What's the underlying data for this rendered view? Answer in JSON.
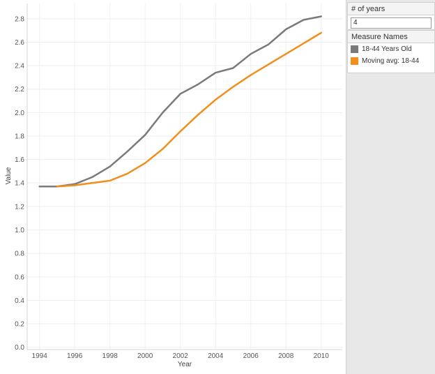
{
  "parameter": {
    "title": "# of years",
    "value": "4"
  },
  "legend": {
    "title": "Measure Names",
    "items": [
      {
        "label": "18-44 Years Old",
        "color": "#7a7a7a"
      },
      {
        "label": "Moving avg: 18-44",
        "color": "#f28e1c"
      }
    ]
  },
  "chart_data": {
    "type": "line",
    "xlabel": "Year",
    "ylabel": "Value",
    "xlim": [
      1993.3,
      2011.2
    ],
    "ylim": [
      -0.02,
      2.93
    ],
    "x_ticks": [
      1994,
      1996,
      1998,
      2000,
      2002,
      2004,
      2006,
      2008,
      2010
    ],
    "y_ticks": [
      "0.0",
      "0.2",
      "0.4",
      "0.6",
      "0.8",
      "1.0",
      "1.2",
      "1.4",
      "1.6",
      "1.8",
      "2.0",
      "2.2",
      "2.4",
      "2.6",
      "2.8"
    ],
    "grid": true,
    "legend_position": "right",
    "series": [
      {
        "name": "18-44 Years Old",
        "color": "#7a7a7a",
        "points": [
          [
            1994,
            1.37
          ],
          [
            1995,
            1.37
          ],
          [
            1996,
            1.39
          ],
          [
            1997,
            1.45
          ],
          [
            1998,
            1.54
          ],
          [
            1999,
            1.67
          ],
          [
            2000,
            1.81
          ],
          [
            2001,
            2.0
          ],
          [
            2002,
            2.16
          ],
          [
            2003,
            2.24
          ],
          [
            2004,
            2.34
          ],
          [
            2005,
            2.38
          ],
          [
            2006,
            2.5
          ],
          [
            2007,
            2.58
          ],
          [
            2008,
            2.71
          ],
          [
            2009,
            2.79
          ],
          [
            2010,
            2.82
          ]
        ]
      },
      {
        "name": "Moving avg: 18-44",
        "color": "#f28e1c",
        "points": [
          [
            1995,
            1.37
          ],
          [
            1996,
            1.38
          ],
          [
            1997,
            1.4
          ],
          [
            1998,
            1.42
          ],
          [
            1999,
            1.48
          ],
          [
            2000,
            1.57
          ],
          [
            2001,
            1.69
          ],
          [
            2002,
            1.84
          ],
          [
            2003,
            1.98
          ],
          [
            2004,
            2.11
          ],
          [
            2005,
            2.22
          ],
          [
            2006,
            2.32
          ],
          [
            2007,
            2.41
          ],
          [
            2008,
            2.5
          ],
          [
            2009,
            2.59
          ],
          [
            2010,
            2.68
          ]
        ]
      }
    ]
  }
}
